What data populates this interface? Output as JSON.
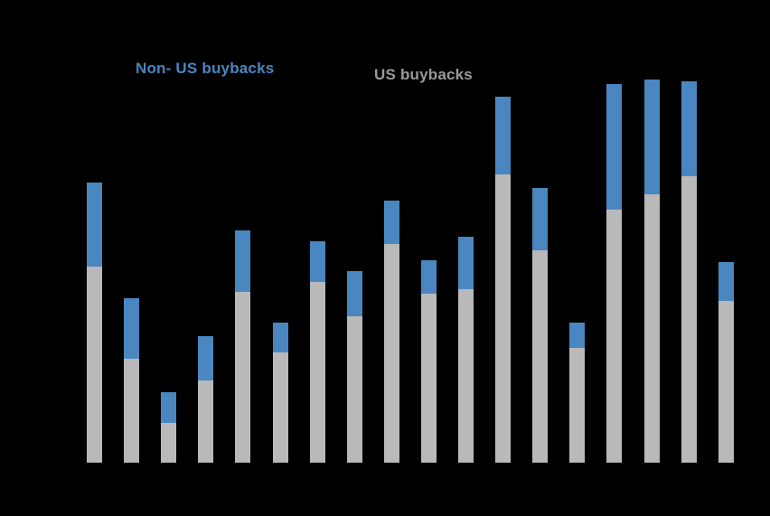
{
  "page": {
    "background_color": "#000000"
  },
  "legend": {
    "non_us": {
      "label": "Non- US buybacks",
      "color": "#4a86c0"
    },
    "us": {
      "label": "US buybacks",
      "color": "#9a9a9a"
    }
  },
  "chart_data": {
    "type": "bar",
    "stacked": true,
    "title": "",
    "xlabel": "",
    "ylabel": "",
    "axis_tick_labels_visible": false,
    "grid": false,
    "legend_position": "top",
    "categories": [
      "",
      "",
      "",
      "",
      "",
      "",
      "",
      "",
      "",
      "",
      "",
      "",
      "",
      "",
      "",
      "",
      "",
      ""
    ],
    "series": [
      {
        "name": "US buybacks",
        "color": "#b9b9b9",
        "values": [
          217,
          115,
          44,
          91,
          189,
          122,
          200,
          162,
          242,
          187,
          192,
          319,
          235,
          127,
          280,
          297,
          317,
          179
        ]
      },
      {
        "name": "Non- US buybacks",
        "color": "#4a86c0",
        "values": [
          93,
          67,
          34,
          49,
          68,
          33,
          45,
          50,
          48,
          37,
          58,
          86,
          69,
          28,
          139,
          127,
          105,
          43
        ]
      }
    ],
    "totals": [
      310,
      182,
      78,
      140,
      257,
      155,
      245,
      212,
      290,
      224,
      250,
      405,
      304,
      155,
      419,
      424,
      422,
      222
    ],
    "value_unit": "relative height units (y-axis labels not visible in image)",
    "ylim": [
      0,
      450
    ]
  }
}
